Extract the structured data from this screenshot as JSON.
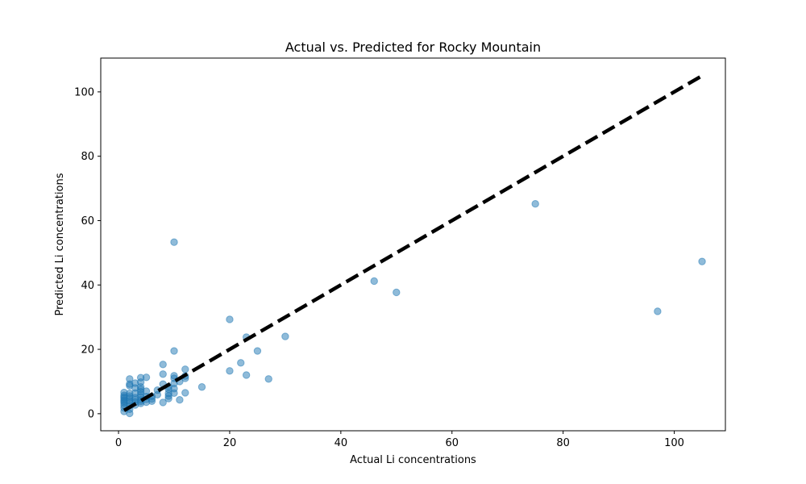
{
  "chart_data": {
    "type": "scatter",
    "title": "Actual vs. Predicted for Rocky Mountain",
    "xlabel": "Actual Li concentrations",
    "ylabel": "Predicted Li concentrations",
    "xlim": [
      -3.2,
      109.2
    ],
    "ylim": [
      -5.3,
      110.5
    ],
    "xticks": [
      0,
      20,
      40,
      60,
      80,
      100
    ],
    "yticks": [
      0,
      20,
      40,
      60,
      80,
      100
    ],
    "grid": false,
    "legend": "none",
    "colors": {
      "points": "#1f77b4",
      "reference_line": "#000000",
      "axes": "#000000"
    },
    "reference_line": {
      "style": "dashed",
      "from": [
        1,
        1
      ],
      "to": [
        105,
        105
      ]
    },
    "series": [
      {
        "x": [
          1,
          1,
          1,
          1,
          1,
          1,
          1,
          1,
          1,
          1,
          2,
          2,
          2,
          2,
          2,
          2,
          2,
          2,
          2,
          2,
          2,
          3,
          3,
          3,
          3,
          3,
          3,
          3,
          4,
          4,
          4,
          4,
          4,
          4,
          4,
          4,
          4,
          4,
          5,
          5,
          5,
          5,
          5,
          6,
          6,
          6,
          7,
          7,
          8,
          8,
          8,
          8,
          9,
          9,
          9,
          9,
          9,
          10,
          10,
          10,
          10,
          10,
          10,
          10,
          11,
          11,
          12,
          12,
          12,
          12,
          15,
          20,
          20,
          22,
          23,
          23,
          25,
          27,
          30,
          46,
          50,
          75,
          97,
          105
        ],
        "y": [
          0.7,
          1.8,
          2.6,
          3.3,
          3.8,
          4.2,
          4.8,
          5.2,
          5.7,
          6.6,
          0.1,
          1.4,
          2.5,
          3.4,
          4.0,
          4.9,
          5.5,
          6.3,
          8.7,
          9.2,
          10.8,
          2.7,
          3.6,
          4.4,
          5.0,
          6.4,
          8.0,
          9.5,
          3.2,
          3.8,
          4.3,
          5.2,
          6.0,
          6.8,
          7.6,
          8.3,
          9.8,
          11.2,
          3.6,
          4.5,
          5.3,
          7.0,
          11.3,
          3.9,
          4.6,
          5.4,
          5.9,
          7.3,
          3.5,
          9.2,
          12.3,
          15.3,
          4.7,
          5.5,
          6.3,
          7.6,
          8.4,
          6.4,
          7.8,
          9.4,
          11.0,
          11.8,
          19.5,
          53.3,
          4.3,
          10.0,
          6.5,
          11.0,
          11.7,
          13.8,
          8.3,
          13.3,
          29.3,
          15.8,
          12.0,
          23.8,
          19.5,
          10.8,
          24.0,
          41.2,
          37.7,
          65.2,
          31.8,
          47.3
        ]
      }
    ]
  }
}
